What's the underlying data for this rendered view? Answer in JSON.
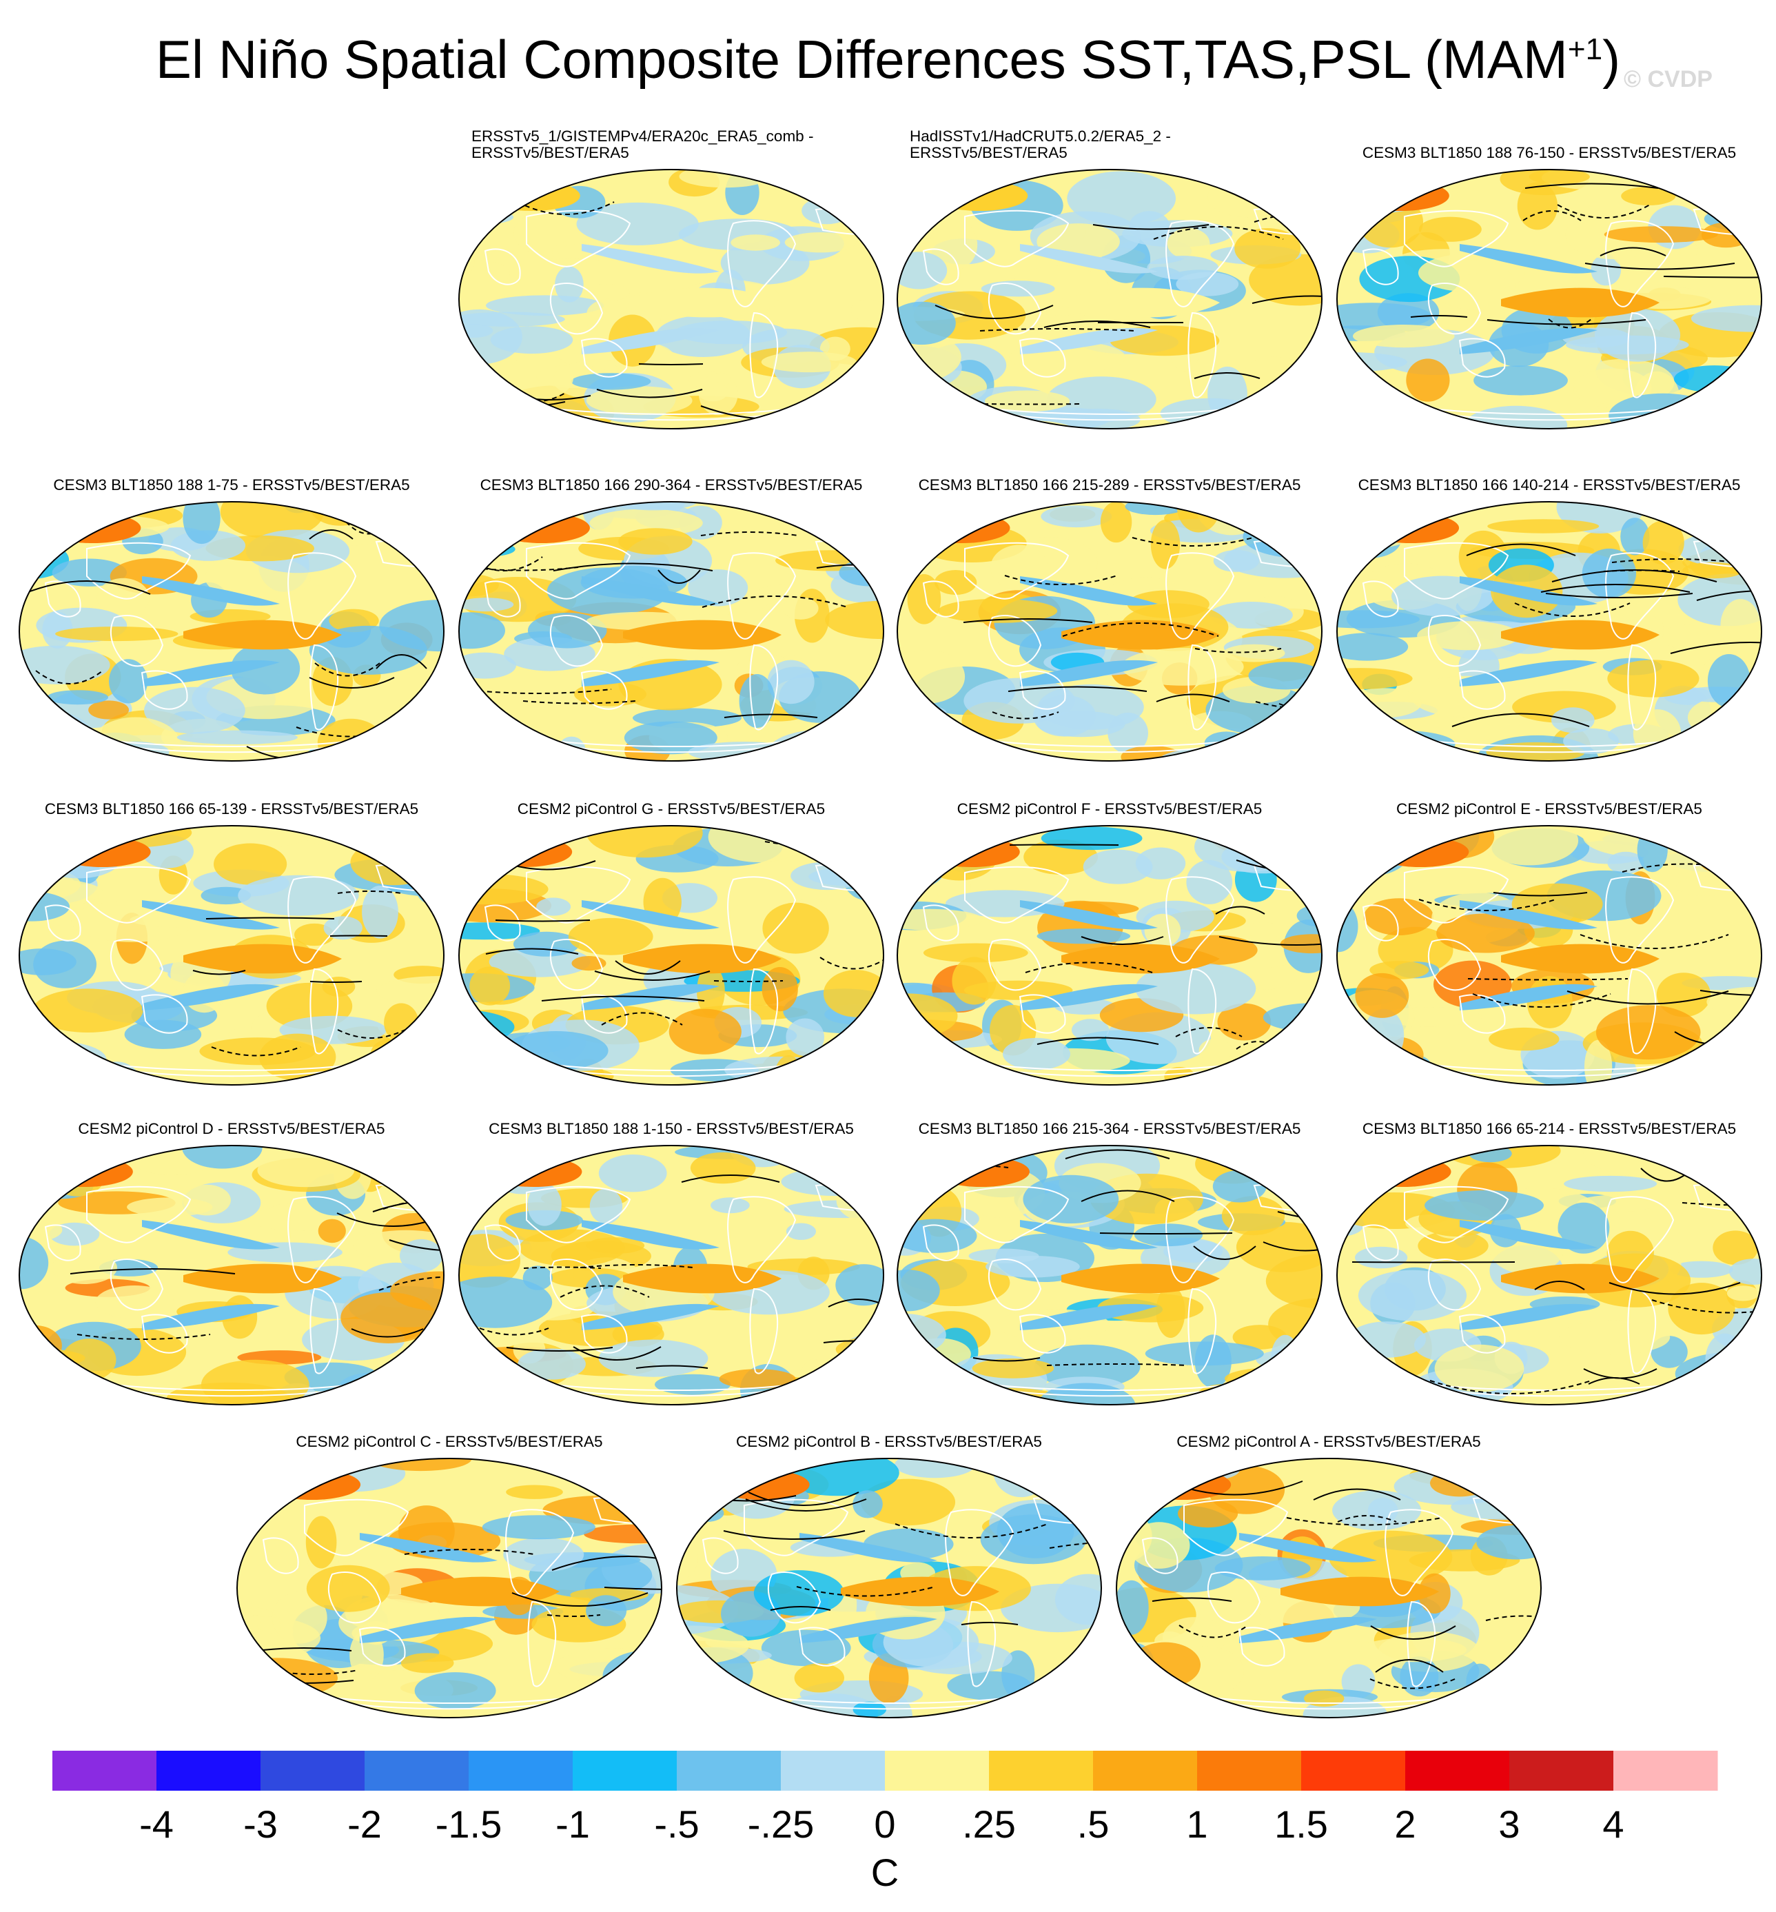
{
  "title": {
    "main": "El Niño Spatial Composite Differences SST,TAS,PSL (MAM",
    "superscript": "+1",
    "close": ")"
  },
  "watermark": "© CVDP",
  "panels": [
    {
      "title": "ERSSTv5_1/GISTEMPv4/ERA20c_ERA5_comb - ERSSTv5/BEST/ERA5",
      "pattern": "weak"
    },
    {
      "title": "HadISSTv1/HadCRUT5.0.2/ERA5_2 - ERSSTv5/BEST/ERA5",
      "pattern": "weak"
    },
    {
      "title": "CESM3 BLT1850 188 76-150 - ERSSTv5/BEST/ERA5",
      "pattern": "model"
    },
    {
      "title": "CESM3 BLT1850 188 1-75 - ERSSTv5/BEST/ERA5",
      "pattern": "model"
    },
    {
      "title": "CESM3 BLT1850 166 290-364 - ERSSTv5/BEST/ERA5",
      "pattern": "model"
    },
    {
      "title": "CESM3 BLT1850 166 215-289 - ERSSTv5/BEST/ERA5",
      "pattern": "model"
    },
    {
      "title": "CESM3 BLT1850 166 140-214 - ERSSTv5/BEST/ERA5",
      "pattern": "model"
    },
    {
      "title": "CESM3 BLT1850 166 65-139 - ERSSTv5/BEST/ERA5",
      "pattern": "model"
    },
    {
      "title": "CESM2 piControl G - ERSSTv5/BEST/ERA5",
      "pattern": "strong"
    },
    {
      "title": "CESM2 piControl F - ERSSTv5/BEST/ERA5",
      "pattern": "strong"
    },
    {
      "title": "CESM2 piControl E - ERSSTv5/BEST/ERA5",
      "pattern": "strong"
    },
    {
      "title": "CESM2 piControl D - ERSSTv5/BEST/ERA5",
      "pattern": "strong"
    },
    {
      "title": "CESM3 BLT1850 188 1-150 - ERSSTv5/BEST/ERA5",
      "pattern": "model"
    },
    {
      "title": "CESM3 BLT1850 166 215-364 - ERSSTv5/BEST/ERA5",
      "pattern": "model"
    },
    {
      "title": "CESM3 BLT1850 166 65-214 - ERSSTv5/BEST/ERA5",
      "pattern": "model"
    },
    {
      "title": "CESM2 piControl C - ERSSTv5/BEST/ERA5",
      "pattern": "strong"
    },
    {
      "title": "CESM2 piControl B - ERSSTv5/BEST/ERA5",
      "pattern": "strong"
    },
    {
      "title": "CESM2 piControl A - ERSSTv5/BEST/ERA5",
      "pattern": "strong"
    }
  ],
  "colorbar": {
    "unit": "C",
    "labels": [
      "-4",
      "-3",
      "-2",
      "-1.5",
      "-1",
      "-.5",
      "-.25",
      "0",
      ".25",
      ".5",
      "1",
      "1.5",
      "2",
      "3",
      "4"
    ],
    "colors": [
      "#8a2be2",
      "#1a0dff",
      "#2f49e0",
      "#3479e6",
      "#2a95f5",
      "#13bdf7",
      "#6dc2ee",
      "#b3ddf3",
      "#fdf597",
      "#fdd12f",
      "#fba915",
      "#fb7b0a",
      "#fe3c08",
      "#e8000b",
      "#cc1c1c",
      "#ffb6b9"
    ]
  }
}
